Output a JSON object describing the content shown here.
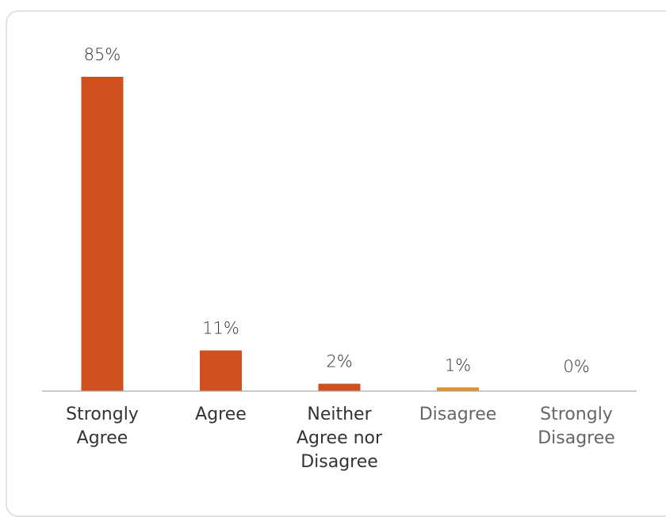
{
  "chart_data": {
    "type": "bar",
    "categories": [
      {
        "lines": [
          "Strongly",
          "Agree"
        ]
      },
      {
        "lines": [
          "Agree"
        ]
      },
      {
        "lines": [
          "Neither",
          "Agree nor",
          "Disagree"
        ]
      },
      {
        "lines": [
          "Disagree"
        ]
      },
      {
        "lines": [
          "Strongly",
          "Disagree"
        ]
      }
    ],
    "values": [
      85,
      11,
      2,
      1,
      0
    ],
    "data_labels": [
      "85%",
      "11%",
      "2%",
      "1%",
      "0%"
    ],
    "title": "",
    "xlabel": "",
    "ylabel": "",
    "ylim": [
      0,
      100
    ],
    "grid": false,
    "legend": "none",
    "colors": {
      "bars": [
        "#d05020",
        "#d05020",
        "#d05020",
        "#e0902a",
        "#d05020"
      ],
      "category_text": [
        "#333333",
        "#333333",
        "#333333",
        "#666666",
        "#666666"
      ],
      "axis": "#aaaaaa",
      "card_border": "#e2e2e2"
    }
  }
}
